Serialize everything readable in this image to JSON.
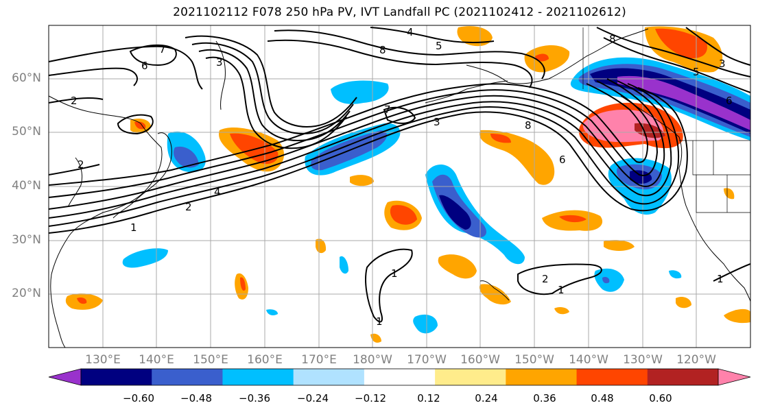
{
  "title": "2021102112 F078 250 hPa PV, IVT Landfall PC (2021102412 - 2021102612)",
  "map": {
    "lat_labels": [
      "60°N",
      "50°N",
      "40°N",
      "30°N",
      "20°N"
    ],
    "lon_labels": [
      "130°E",
      "140°E",
      "150°E",
      "160°E",
      "170°E",
      "180°W",
      "170°W",
      "160°W",
      "150°W",
      "140°W",
      "130°W",
      "120°W"
    ],
    "contour_labels": [
      "6",
      "7",
      "3",
      "4",
      "5",
      "8",
      "2",
      "1",
      "7",
      "3",
      "8",
      "6",
      "2",
      "4",
      "2",
      "1",
      "1",
      "2",
      "1",
      "8",
      "5",
      "3",
      "6",
      "1"
    ]
  },
  "colorbar": {
    "tick_labels": [
      "−0.60",
      "−0.48",
      "−0.36",
      "−0.24",
      "−0.12",
      "0.12",
      "0.24",
      "0.36",
      "0.48",
      "0.60"
    ],
    "colors": [
      "#9932cc",
      "#000080",
      "#3a5fcd",
      "#00bfff",
      "#b0e2ff",
      "#ffffff",
      "#ffec8b",
      "#ffa500",
      "#ff4500",
      "#b22222",
      "#ff82ab"
    ]
  }
}
